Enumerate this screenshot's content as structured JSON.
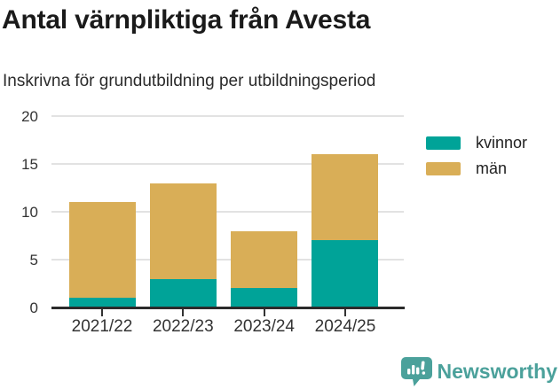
{
  "header": {
    "title": "Antal värnpliktiga från Avesta",
    "subtitle": "Inskrivna för grundutbildning per utbildningsperiod"
  },
  "chart_data": {
    "type": "bar",
    "stacked": true,
    "title": "Antal värnpliktiga från Avesta",
    "subtitle": "Inskrivna för grundutbildning per utbildningsperiod",
    "categories": [
      "2021/22",
      "2022/23",
      "2023/24",
      "2024/25"
    ],
    "series": [
      {
        "name": "kvinnor",
        "color": "#00a398",
        "values": [
          1,
          3,
          2,
          7
        ]
      },
      {
        "name": "män",
        "color": "#d9ae57",
        "values": [
          10,
          10,
          6,
          9
        ]
      }
    ],
    "stack_totals": [
      11,
      13,
      8,
      16
    ],
    "ylim": [
      0,
      20
    ],
    "yticks": [
      0,
      5,
      10,
      15,
      20
    ],
    "grid": "horizontal",
    "legend_position": "right",
    "colors": {
      "axis": "#2b2b2b",
      "gridline": "#e2e2e2",
      "tick_label": "#333333"
    }
  },
  "footer": {
    "brand": "Newsworthy",
    "brand_color": "#4ba19b",
    "logo_icon": "bar-chart-speech-bubble"
  }
}
